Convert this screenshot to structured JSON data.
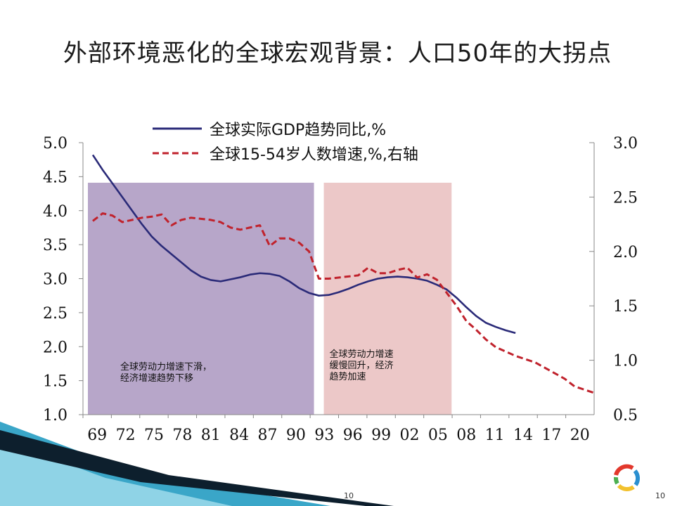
{
  "slide": {
    "title": "外部环境恶化的全球宏观背景：人口50年的大拐点",
    "page_center": "10",
    "page_corner": "10"
  },
  "chart_data": {
    "type": "line",
    "x_ticks": [
      "69",
      "72",
      "75",
      "78",
      "81",
      "84",
      "87",
      "90",
      "93",
      "96",
      "99",
      "02",
      "05",
      "08",
      "11",
      "14",
      "17",
      "20"
    ],
    "x_range": [
      1969,
      2020
    ],
    "left_axis": {
      "range": [
        1.0,
        5.0
      ],
      "ticks": [
        "5.0",
        "4.5",
        "4.0",
        "3.5",
        "3.0",
        "2.5",
        "2.0",
        "1.5",
        "1.0"
      ]
    },
    "right_axis": {
      "range": [
        0.5,
        3.0
      ],
      "ticks": [
        "3.0",
        "2.5",
        "2.0",
        "1.5",
        "1.0",
        "0.5"
      ]
    },
    "legend": {
      "position": "top"
    },
    "series": [
      {
        "name": "全球实际GDP趋势同比,%",
        "axis": "left",
        "color": "#2a2a78",
        "style": "solid",
        "x": [
          1969,
          1970,
          1971,
          1972,
          1973,
          1974,
          1975,
          1976,
          1977,
          1978,
          1979,
          1980,
          1981,
          1982,
          1983,
          1984,
          1985,
          1986,
          1987,
          1988,
          1989,
          1990,
          1991,
          1992,
          1993,
          1994,
          1995,
          1996,
          1997,
          1998,
          1999,
          2000,
          2001,
          2002,
          2003,
          2004,
          2005,
          2006,
          2007,
          2008,
          2009,
          2010,
          2011,
          2012
        ],
        "y": [
          4.82,
          4.6,
          4.4,
          4.2,
          4.0,
          3.8,
          3.62,
          3.48,
          3.36,
          3.24,
          3.12,
          3.03,
          2.98,
          2.96,
          2.99,
          3.02,
          3.06,
          3.08,
          3.07,
          3.04,
          2.96,
          2.86,
          2.79,
          2.75,
          2.76,
          2.8,
          2.85,
          2.91,
          2.96,
          3.0,
          3.02,
          3.03,
          3.02,
          3.0,
          2.97,
          2.91,
          2.84,
          2.72,
          2.58,
          2.45,
          2.35,
          2.29,
          2.24,
          2.2
        ]
      },
      {
        "name": "全球15-54岁人数增速,%,右轴",
        "axis": "right",
        "color": "#c0222c",
        "style": "dashed",
        "x": [
          1969,
          1970,
          1971,
          1972,
          1973,
          1974,
          1975,
          1976,
          1977,
          1978,
          1979,
          1980,
          1981,
          1982,
          1983,
          1984,
          1985,
          1986,
          1987,
          1988,
          1989,
          1990,
          1991,
          1992,
          1993,
          1994,
          1995,
          1996,
          1997,
          1998,
          1999,
          2000,
          2001,
          2002,
          2003,
          2004,
          2005,
          2006,
          2007,
          2008,
          2009,
          2010,
          2011,
          2012,
          2013,
          2014,
          2015,
          2016,
          2017,
          2018,
          2019,
          2020
        ],
        "y": [
          2.28,
          2.35,
          2.33,
          2.27,
          2.29,
          2.31,
          2.32,
          2.34,
          2.24,
          2.29,
          2.31,
          2.3,
          2.29,
          2.27,
          2.22,
          2.2,
          2.22,
          2.24,
          2.05,
          2.12,
          2.12,
          2.08,
          2.0,
          1.75,
          1.75,
          1.76,
          1.77,
          1.78,
          1.85,
          1.8,
          1.8,
          1.83,
          1.85,
          1.76,
          1.79,
          1.74,
          1.62,
          1.5,
          1.36,
          1.28,
          1.19,
          1.12,
          1.08,
          1.04,
          1.01,
          0.98,
          0.93,
          0.88,
          0.83,
          0.76,
          0.73,
          0.7
        ]
      }
    ],
    "regions": [
      {
        "x": [
          1968,
          1991
        ],
        "color": "#b7a6c9",
        "annotation": [
          "全球劳动力增速下滑，",
          "经济增速趋势下移"
        ]
      },
      {
        "x": [
          1992,
          2005
        ],
        "color": "#ecc8c8",
        "annotation": [
          "全球劳动力增速",
          "缓慢回升，经济",
          "趋势加速"
        ]
      }
    ]
  }
}
